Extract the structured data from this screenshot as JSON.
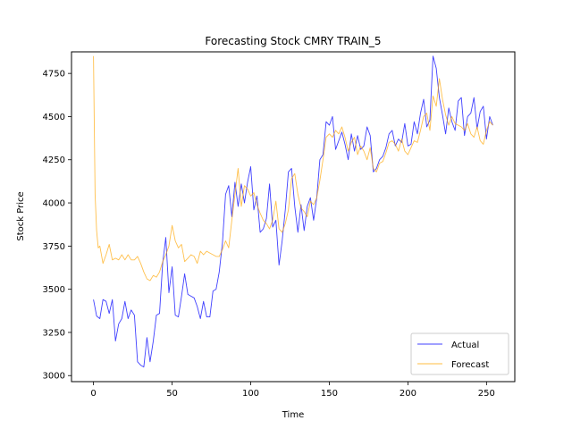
{
  "chart_data": {
    "type": "line",
    "title": "Forecasting Stock CMRY TRAIN_5",
    "xlabel": "Time",
    "ylabel": "Stock Price",
    "xlim": [
      -14,
      268
    ],
    "ylim": [
      2965,
      4875
    ],
    "xticks": [
      0,
      50,
      100,
      150,
      200,
      250
    ],
    "yticks": [
      3000,
      3250,
      3500,
      3750,
      4000,
      4250,
      4500,
      4750
    ],
    "grid": false,
    "legend_position": "lower right",
    "series": [
      {
        "name": "Actual",
        "color": "#0000ff",
        "x": [
          0,
          2,
          4,
          6,
          8,
          10,
          12,
          14,
          16,
          18,
          20,
          22,
          24,
          26,
          28,
          30,
          32,
          34,
          36,
          38,
          40,
          42,
          44,
          46,
          48,
          50,
          52,
          54,
          56,
          58,
          60,
          62,
          64,
          66,
          68,
          70,
          72,
          74,
          76,
          78,
          80,
          82,
          84,
          86,
          88,
          90,
          92,
          94,
          96,
          98,
          100,
          102,
          104,
          106,
          108,
          110,
          112,
          114,
          116,
          118,
          120,
          122,
          124,
          126,
          128,
          130,
          132,
          134,
          136,
          138,
          140,
          142,
          144,
          146,
          148,
          150,
          152,
          154,
          156,
          158,
          160,
          162,
          164,
          166,
          168,
          170,
          172,
          174,
          176,
          178,
          180,
          182,
          184,
          186,
          188,
          190,
          192,
          194,
          196,
          198,
          200,
          202,
          204,
          206,
          208,
          210,
          212,
          214,
          216,
          218,
          220,
          222,
          224,
          226,
          228,
          230,
          232,
          234,
          236,
          238,
          240,
          242,
          244,
          246,
          248,
          250,
          252,
          254
        ],
        "y": [
          3440,
          3345,
          3330,
          3440,
          3430,
          3360,
          3440,
          3200,
          3300,
          3330,
          3430,
          3330,
          3380,
          3350,
          3080,
          3060,
          3050,
          3220,
          3080,
          3200,
          3350,
          3360,
          3650,
          3800,
          3480,
          3630,
          3350,
          3340,
          3460,
          3590,
          3470,
          3460,
          3450,
          3400,
          3330,
          3430,
          3340,
          3340,
          3490,
          3500,
          3600,
          3770,
          4050,
          4100,
          3920,
          4120,
          3980,
          4110,
          4000,
          4120,
          4210,
          3960,
          4040,
          3830,
          3850,
          3910,
          4110,
          3860,
          3900,
          3640,
          3780,
          3960,
          4180,
          4200,
          3980,
          3830,
          3990,
          3840,
          3980,
          4030,
          3900,
          4030,
          4250,
          4280,
          4470,
          4450,
          4500,
          4310,
          4360,
          4410,
          4340,
          4250,
          4400,
          4300,
          4390,
          4310,
          4330,
          4440,
          4390,
          4180,
          4200,
          4250,
          4270,
          4320,
          4400,
          4420,
          4330,
          4370,
          4350,
          4460,
          4330,
          4340,
          4470,
          4400,
          4520,
          4600,
          4440,
          4480,
          4850,
          4780,
          4610,
          4510,
          4400,
          4550,
          4470,
          4420,
          4590,
          4610,
          4390,
          4500,
          4520,
          4610,
          4430,
          4530,
          4560,
          4370,
          4500,
          4450
        ]
      },
      {
        "name": "Forecast",
        "color": "#ffa500",
        "x": [
          0,
          1,
          2,
          3,
          4,
          6,
          8,
          10,
          12,
          14,
          16,
          18,
          20,
          22,
          24,
          26,
          28,
          30,
          32,
          34,
          36,
          38,
          40,
          42,
          44,
          46,
          48,
          50,
          52,
          54,
          56,
          58,
          60,
          62,
          64,
          66,
          68,
          70,
          72,
          74,
          76,
          78,
          80,
          82,
          84,
          86,
          88,
          90,
          92,
          94,
          96,
          98,
          100,
          102,
          104,
          106,
          108,
          110,
          112,
          114,
          116,
          118,
          120,
          122,
          124,
          126,
          128,
          130,
          132,
          134,
          136,
          138,
          140,
          142,
          144,
          146,
          148,
          150,
          152,
          154,
          156,
          158,
          160,
          162,
          164,
          166,
          168,
          170,
          172,
          174,
          176,
          178,
          180,
          182,
          184,
          186,
          188,
          190,
          192,
          194,
          196,
          198,
          200,
          202,
          204,
          206,
          208,
          210,
          212,
          214,
          216,
          218,
          220,
          222,
          224,
          226,
          228,
          230,
          232,
          234,
          236,
          238,
          240,
          242,
          244,
          246,
          248,
          250,
          252,
          254
        ],
        "y": [
          4850,
          4050,
          3840,
          3740,
          3750,
          3650,
          3700,
          3760,
          3670,
          3680,
          3670,
          3700,
          3670,
          3700,
          3670,
          3670,
          3690,
          3650,
          3600,
          3560,
          3550,
          3580,
          3570,
          3600,
          3660,
          3700,
          3750,
          3870,
          3780,
          3740,
          3760,
          3660,
          3680,
          3700,
          3690,
          3650,
          3720,
          3700,
          3720,
          3710,
          3700,
          3690,
          3690,
          3730,
          3780,
          3740,
          3900,
          4050,
          4200,
          3980,
          4100,
          4080,
          4040,
          4060,
          3990,
          3940,
          3900,
          3880,
          3850,
          3900,
          4010,
          3850,
          3830,
          3880,
          3960,
          4140,
          4170,
          4050,
          3970,
          3950,
          3920,
          4010,
          3990,
          4030,
          4130,
          4250,
          4380,
          4400,
          4380,
          4420,
          4400,
          4440,
          4380,
          4300,
          4350,
          4380,
          4280,
          4330,
          4300,
          4250,
          4320,
          4200,
          4180,
          4230,
          4240,
          4290,
          4350,
          4360,
          4340,
          4300,
          4370,
          4300,
          4280,
          4320,
          4360,
          4350,
          4420,
          4500,
          4520,
          4420,
          4620,
          4560,
          4720,
          4600,
          4510,
          4450,
          4500,
          4460,
          4450,
          4440,
          4420,
          4460,
          4400,
          4380,
          4440,
          4360,
          4340,
          4420,
          4470,
          4450
        ]
      }
    ]
  }
}
